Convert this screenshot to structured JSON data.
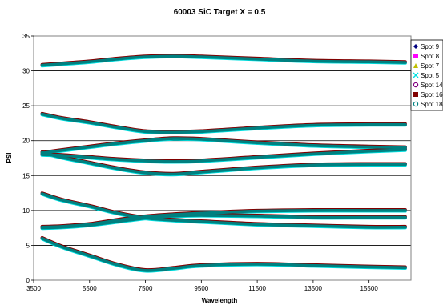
{
  "chart_data": {
    "type": "line",
    "title": "60003 SiC Target X = 0.5",
    "xlabel": "Wavelength",
    "ylabel": "PSI",
    "xlim": [
      3500,
      17000
    ],
    "ylim": [
      0,
      35
    ],
    "x_ticks": [
      3500,
      5500,
      7500,
      9500,
      11500,
      13500,
      15500
    ],
    "y_ticks": [
      0,
      5,
      10,
      15,
      20,
      25,
      30,
      35
    ],
    "grid": "horizontal",
    "legend_position": "right",
    "x": [
      3800,
      4500,
      5500,
      6500,
      7500,
      8500,
      9500,
      11500,
      13500,
      15500,
      16800
    ],
    "curve_groups": [
      {
        "y": [
          30.8,
          31.0,
          31.3,
          31.7,
          32.0,
          32.1,
          32.0,
          31.7,
          31.4,
          31.3,
          31.2
        ]
      },
      {
        "y": [
          23.8,
          23.2,
          22.6,
          21.9,
          21.3,
          21.2,
          21.3,
          21.8,
          22.2,
          22.3,
          22.3
        ]
      },
      {
        "y": [
          18.2,
          18.6,
          19.1,
          19.6,
          20.0,
          20.3,
          20.2,
          19.7,
          19.3,
          19.1,
          19.0
        ]
      },
      {
        "y": [
          18.0,
          17.9,
          17.6,
          17.3,
          17.1,
          17.0,
          17.1,
          17.6,
          18.1,
          18.5,
          18.7
        ]
      },
      {
        "y": [
          18.3,
          17.6,
          16.8,
          16.0,
          15.4,
          15.2,
          15.5,
          16.1,
          16.5,
          16.6,
          16.6
        ]
      },
      {
        "y": [
          12.4,
          11.5,
          10.6,
          9.6,
          8.9,
          8.6,
          8.4,
          8.0,
          7.8,
          7.6,
          7.6
        ]
      },
      {
        "y": [
          7.6,
          7.7,
          8.0,
          8.6,
          9.1,
          9.4,
          9.6,
          9.9,
          10.0,
          10.0,
          10.0
        ]
      },
      {
        "y": [
          7.5,
          7.6,
          7.9,
          8.4,
          8.9,
          9.2,
          9.3,
          9.2,
          9.0,
          9.0,
          9.0
        ]
      },
      {
        "y": [
          6.0,
          4.8,
          3.5,
          2.2,
          1.4,
          1.7,
          2.1,
          2.3,
          2.1,
          1.9,
          1.8
        ]
      }
    ],
    "series": [
      {
        "name": "Spot 9",
        "color": "#000080",
        "marker": "diamond",
        "offset": -0.05
      },
      {
        "name": "Spot 8",
        "color": "#ff00ff",
        "marker": "square",
        "offset": 0.08
      },
      {
        "name": "Spot 7",
        "color": "#c0c000",
        "marker": "triangle",
        "offset": 0.02
      },
      {
        "name": "Spot 5",
        "color": "#00e0e0",
        "marker": "x",
        "offset": -0.1
      },
      {
        "name": "Spot 14",
        "color": "#800080",
        "marker": "circle",
        "offset": 0.05
      },
      {
        "name": "Spot 16",
        "color": "#800000",
        "marker": "square",
        "offset": 0.12
      },
      {
        "name": "Spot 18",
        "color": "#008080",
        "marker": "circle",
        "offset": 0.0
      }
    ]
  }
}
